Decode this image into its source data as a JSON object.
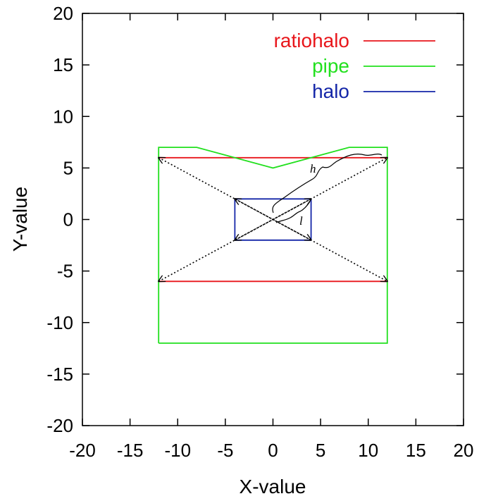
{
  "chart_data": {
    "type": "line",
    "title": "",
    "xlabel": "X-value",
    "ylabel": "Y-value",
    "xlim": [
      -20,
      20
    ],
    "ylim": [
      -20,
      20
    ],
    "xticks": [
      -20,
      -15,
      -10,
      -5,
      0,
      5,
      10,
      15,
      20
    ],
    "yticks": [
      -20,
      -15,
      -10,
      -5,
      0,
      5,
      10,
      15,
      20
    ],
    "xtick_labels": [
      "-20",
      "-15",
      "-10",
      "-5",
      "0",
      "5",
      "10",
      "15",
      "20"
    ],
    "ytick_labels": [
      "-20",
      "-15",
      "-10",
      "-5",
      "0",
      "5",
      "10",
      "15",
      "20"
    ],
    "grid": false,
    "legend_position": "top-right",
    "series": [
      {
        "name": "ratiohalo",
        "color": "#e8161b",
        "segments": [
          [
            [
              -12,
              6
            ],
            [
              12,
              6
            ]
          ],
          [
            [
              -12,
              -6
            ],
            [
              12,
              -6
            ]
          ]
        ]
      },
      {
        "name": "pipe",
        "color": "#22e01e",
        "segments": [
          [
            [
              -12,
              -12
            ],
            [
              -12,
              7
            ],
            [
              -8,
              7
            ],
            [
              0,
              5
            ],
            [
              8,
              7
            ],
            [
              12,
              7
            ],
            [
              12,
              -12
            ],
            [
              -12,
              -12
            ]
          ]
        ]
      },
      {
        "name": "halo",
        "color": "#1426a8",
        "segments": [
          [
            [
              -4,
              -2
            ],
            [
              -4,
              2
            ],
            [
              4,
              2
            ],
            [
              4,
              -2
            ],
            [
              -4,
              -2
            ]
          ]
        ]
      }
    ],
    "annotations": [
      {
        "type": "double-arrow",
        "from": [
          -12,
          6
        ],
        "to": [
          12,
          -6
        ]
      },
      {
        "type": "double-arrow",
        "from": [
          -12,
          -6
        ],
        "to": [
          12,
          6
        ]
      },
      {
        "type": "double-arrow",
        "from": [
          -4,
          2
        ],
        "to": [
          4,
          -2
        ]
      },
      {
        "type": "double-arrow",
        "from": [
          -4,
          -2
        ],
        "to": [
          4,
          2
        ]
      },
      {
        "type": "brace",
        "label": "h"
      },
      {
        "type": "brace",
        "label": "l"
      }
    ]
  }
}
